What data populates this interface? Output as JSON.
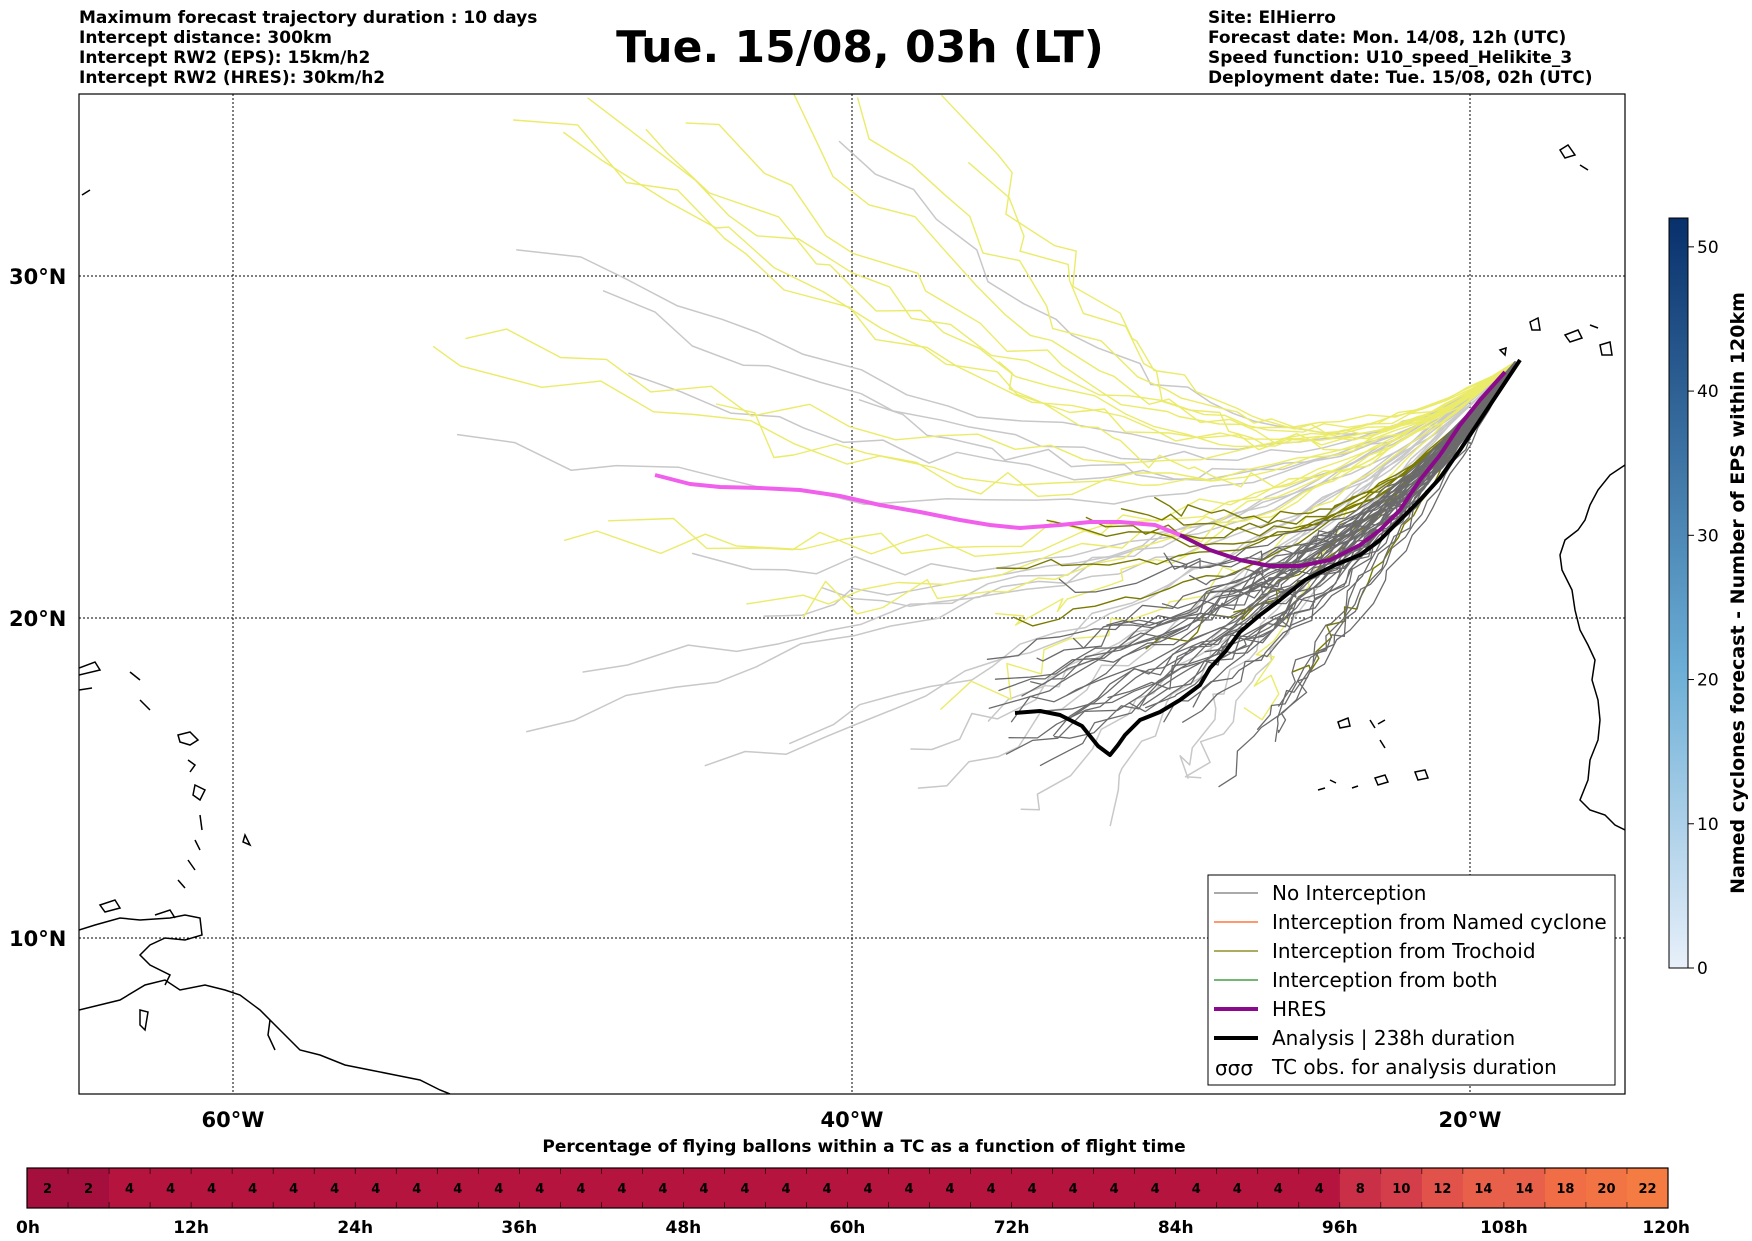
{
  "header": {
    "left_lines": [
      "Maximum forecast trajectory duration : 10 days",
      "Intercept distance: 300km",
      "Intercept RW2 (EPS):  15km/h2",
      "Intercept RW2 (HRES): 30km/h2"
    ],
    "title": "Tue. 15/08, 03h (LT)",
    "right_lines": [
      "Site: ElHierro",
      "Forecast date: Mon. 14/08, 12h (UTC)",
      "Speed function: U10_speed_Helikite_3",
      "Deployment date: Tue. 15/08, 02h (UTC)"
    ]
  },
  "map": {
    "lat_labels": [
      "30°N",
      "20°N",
      "10°N"
    ],
    "lon_labels": [
      "60°W",
      "40°W",
      "20°W"
    ],
    "extent": {
      "lon_min": -65,
      "lon_max": -15,
      "lat_min": 5.5,
      "lat_max": 35.3
    }
  },
  "legend": {
    "items": [
      {
        "label": "No Interception",
        "color": "#777777",
        "style": "thin"
      },
      {
        "label": "Interception from Named cyclone",
        "color": "#ff5a14",
        "style": "thin"
      },
      {
        "label": "Interception from Trochoid",
        "color": "#7a7a00",
        "style": "thin"
      },
      {
        "label": "Interception from both",
        "color": "#208a20",
        "style": "thin"
      },
      {
        "label": "HRES",
        "color": "#8b0a8b",
        "style": "thick"
      },
      {
        "label": "Analysis | 238h duration",
        "color": "#000000",
        "style": "thick"
      },
      {
        "label": "TC obs. for analysis duration",
        "color": "#000000",
        "style": "symbol"
      }
    ]
  },
  "colorbar": {
    "label": "Named cyclones forecast - Number of EPS within 120km",
    "ticks": [
      "0",
      "10",
      "20",
      "30",
      "40",
      "50"
    ],
    "max": 52,
    "color_low": "#e8f0fa",
    "color_high": "#08306b"
  },
  "timebar": {
    "title": "Percentage of flying ballons within a TC as a function of flight time",
    "values": [
      2,
      2,
      4,
      4,
      4,
      4,
      4,
      4,
      4,
      4,
      4,
      4,
      4,
      4,
      4,
      4,
      4,
      4,
      4,
      4,
      4,
      4,
      4,
      4,
      4,
      4,
      4,
      4,
      4,
      4,
      4,
      4,
      8,
      10,
      12,
      14,
      14,
      18,
      20,
      22
    ],
    "ticks": [
      "0h",
      "12h",
      "24h",
      "36h",
      "48h",
      "60h",
      "72h",
      "84h",
      "96h",
      "108h",
      "120h"
    ]
  }
}
